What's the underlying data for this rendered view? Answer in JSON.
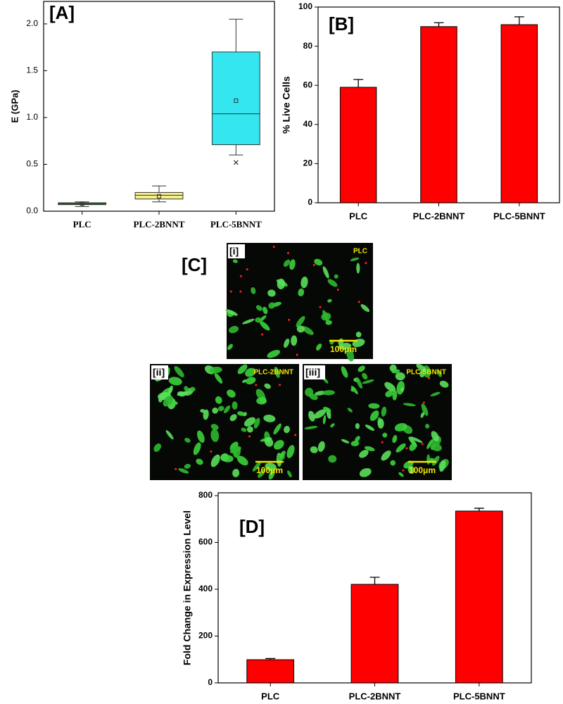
{
  "chart_data": [
    {
      "type": "box",
      "title": "[A]",
      "ylabel": "E (GPa)",
      "categories": [
        "PLC",
        "PLC-2BNNT",
        "PLC-5BNNT"
      ],
      "boxes": [
        {
          "whisker_low": 0.05,
          "q1": 0.07,
          "median": 0.08,
          "q3": 0.09,
          "whisker_high": 0.1,
          "mean": 0.08,
          "outliers": [],
          "color": "#1e9a2c"
        },
        {
          "whisker_low": 0.1,
          "q1": 0.13,
          "median": 0.17,
          "q3": 0.2,
          "whisker_high": 0.27,
          "mean": 0.16,
          "outliers": [],
          "color": "#f5f08a"
        },
        {
          "whisker_low": 0.6,
          "q1": 0.71,
          "median": 1.04,
          "q3": 1.7,
          "whisker_high": 2.05,
          "mean": 1.18,
          "outliers": [
            0.52
          ],
          "color": "#33e6f0"
        }
      ],
      "ylim": [
        0,
        2.24
      ],
      "yticks": [
        {
          "value": 0,
          "label": "0.0"
        },
        0.5,
        {
          "value": 1,
          "label": "1.0"
        },
        1.5,
        {
          "value": 2,
          "label": "2.0"
        }
      ]
    },
    {
      "type": "bar",
      "title": "[B]",
      "ylabel": "% Live Cells",
      "categories": [
        "PLC",
        "PLC-2BNNT",
        "PLC-5BNNT"
      ],
      "values": [
        59,
        90,
        91
      ],
      "errors": [
        4,
        2,
        4
      ],
      "color": "#ff0000",
      "ylim": [
        0,
        100
      ],
      "yticks": [
        0,
        20,
        40,
        60,
        80,
        100
      ]
    },
    {
      "type": "bar",
      "title": "[D]",
      "ylabel": "Fold Change in Expression Level",
      "categories": [
        "PLC",
        "PLC-2BNNT",
        "PLC-5BNNT"
      ],
      "values": [
        99,
        421,
        734
      ],
      "errors": [
        5,
        30,
        12
      ],
      "color": "#ff0000",
      "ylim": [
        0,
        812
      ],
      "yticks": [
        0,
        200,
        400,
        600,
        800
      ]
    }
  ],
  "panel_c": {
    "label": "[C]",
    "images": [
      {
        "tag": "[i]",
        "name": "PLC",
        "scale": "100μm"
      },
      {
        "tag": "[ii]",
        "name": "PLC-2BNNT",
        "scale": "100μm"
      },
      {
        "tag": "[iii]",
        "name": "PLC-5BNNT",
        "scale": "100μm"
      }
    ]
  }
}
